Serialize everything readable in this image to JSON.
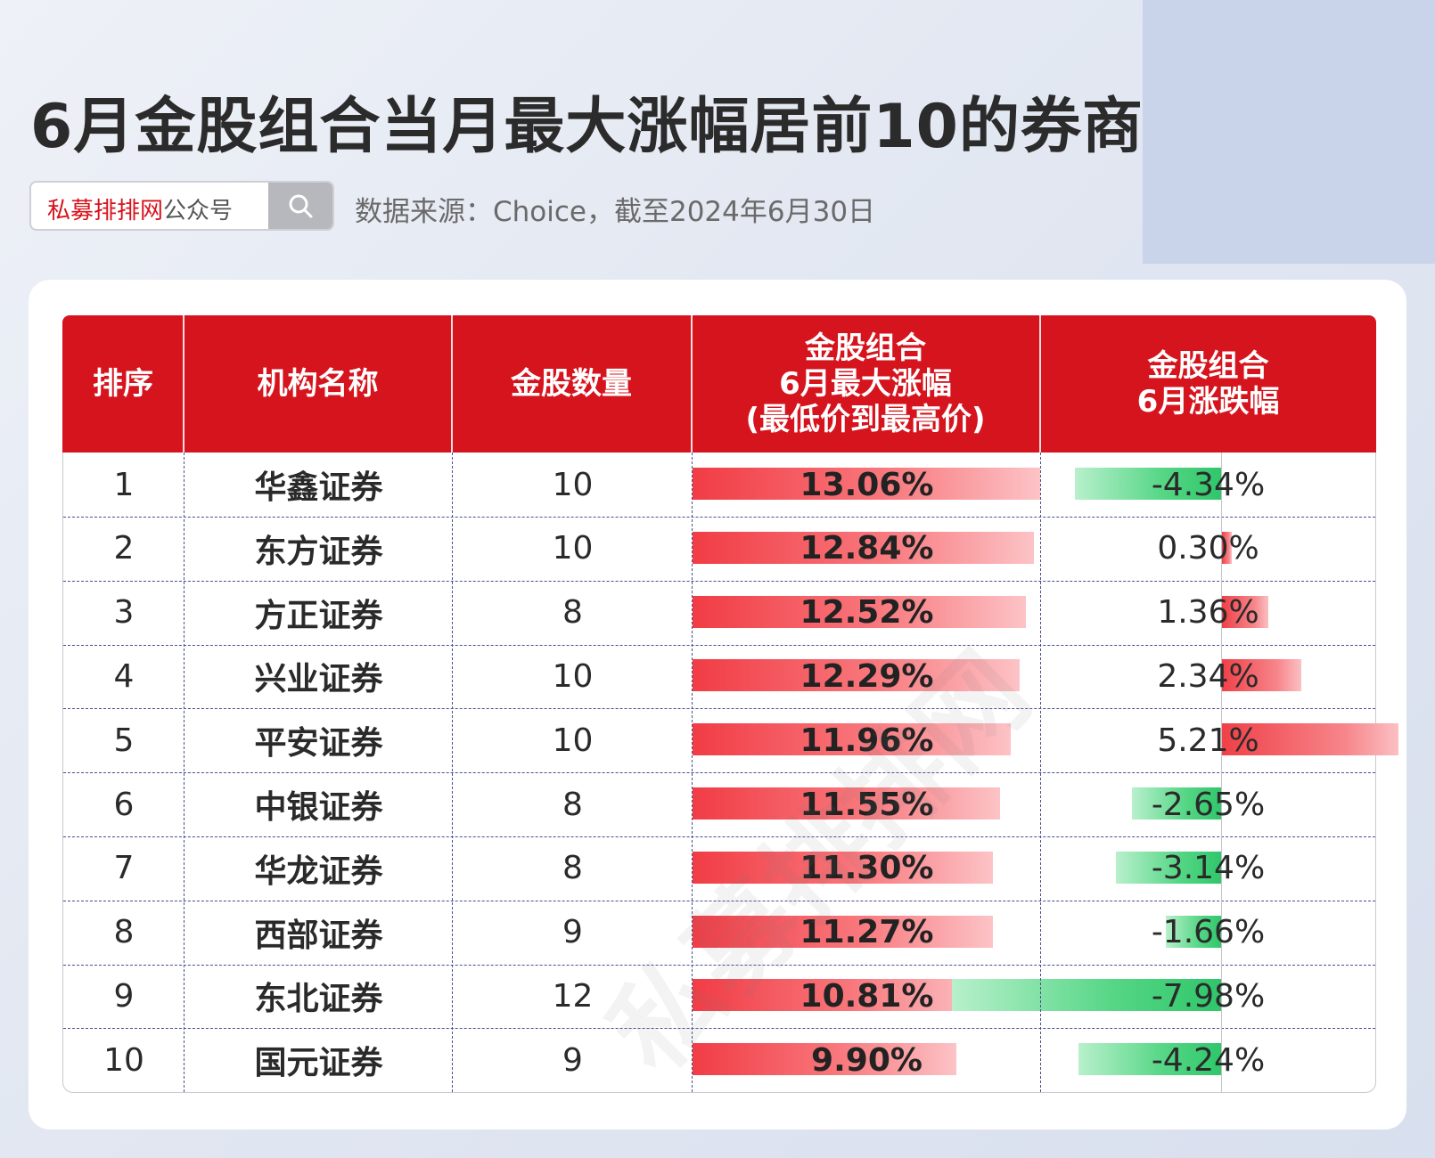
{
  "title": "6月金股组合当月最大涨幅居前10的券商",
  "search": {
    "brand": "私募排排网",
    "suffix": "公众号"
  },
  "source": "数据来源：Choice，截至2024年6月30日",
  "watermark": "私募排排网",
  "chart_data": {
    "type": "table",
    "columns": [
      "排序",
      "机构名称",
      "金股数量",
      "金股组合 6月最大涨幅 (最低价到最高价)",
      "金股组合 6月涨跌幅"
    ],
    "header": {
      "rank": "排序",
      "name": "机构名称",
      "count": "金股数量",
      "max_lines": [
        "金股组合",
        "6月最大涨幅",
        "(最低价到最高价)"
      ],
      "chg_lines": [
        "金股组合",
        "6月涨跌幅"
      ]
    },
    "rows": [
      {
        "rank": "1",
        "name": "华鑫证券",
        "count": "10",
        "max": 13.06,
        "max_label": "13.06%",
        "chg": -4.34,
        "chg_label": "-4.34%"
      },
      {
        "rank": "2",
        "name": "东方证券",
        "count": "10",
        "max": 12.84,
        "max_label": "12.84%",
        "chg": 0.3,
        "chg_label": "0.30%"
      },
      {
        "rank": "3",
        "name": "方正证券",
        "count": "8",
        "max": 12.52,
        "max_label": "12.52%",
        "chg": 1.36,
        "chg_label": "1.36%"
      },
      {
        "rank": "4",
        "name": "兴业证券",
        "count": "10",
        "max": 12.29,
        "max_label": "12.29%",
        "chg": 2.34,
        "chg_label": "2.34%"
      },
      {
        "rank": "5",
        "name": "平安证券",
        "count": "10",
        "max": 11.96,
        "max_label": "11.96%",
        "chg": 5.21,
        "chg_label": "5.21%"
      },
      {
        "rank": "6",
        "name": "中银证券",
        "count": "8",
        "max": 11.55,
        "max_label": "11.55%",
        "chg": -2.65,
        "chg_label": "-2.65%"
      },
      {
        "rank": "7",
        "name": "华龙证券",
        "count": "8",
        "max": 11.3,
        "max_label": "11.30%",
        "chg": -3.14,
        "chg_label": "-3.14%"
      },
      {
        "rank": "8",
        "name": "西部证券",
        "count": "9",
        "max": 11.27,
        "max_label": "11.27%",
        "chg": -1.66,
        "chg_label": "-1.66%"
      },
      {
        "rank": "9",
        "name": "东北证券",
        "count": "12",
        "max": 10.81,
        "max_label": "10.81%",
        "chg": -7.98,
        "chg_label": "-7.98%"
      },
      {
        "rank": "10",
        "name": "国元证券",
        "count": "9",
        "max": 9.9,
        "max_label": "9.90%",
        "chg": -4.24,
        "chg_label": "-4.24%"
      }
    ],
    "colors": {
      "header": "#d6141e",
      "positive": "#f13c45",
      "negative": "#2fc66a"
    }
  }
}
